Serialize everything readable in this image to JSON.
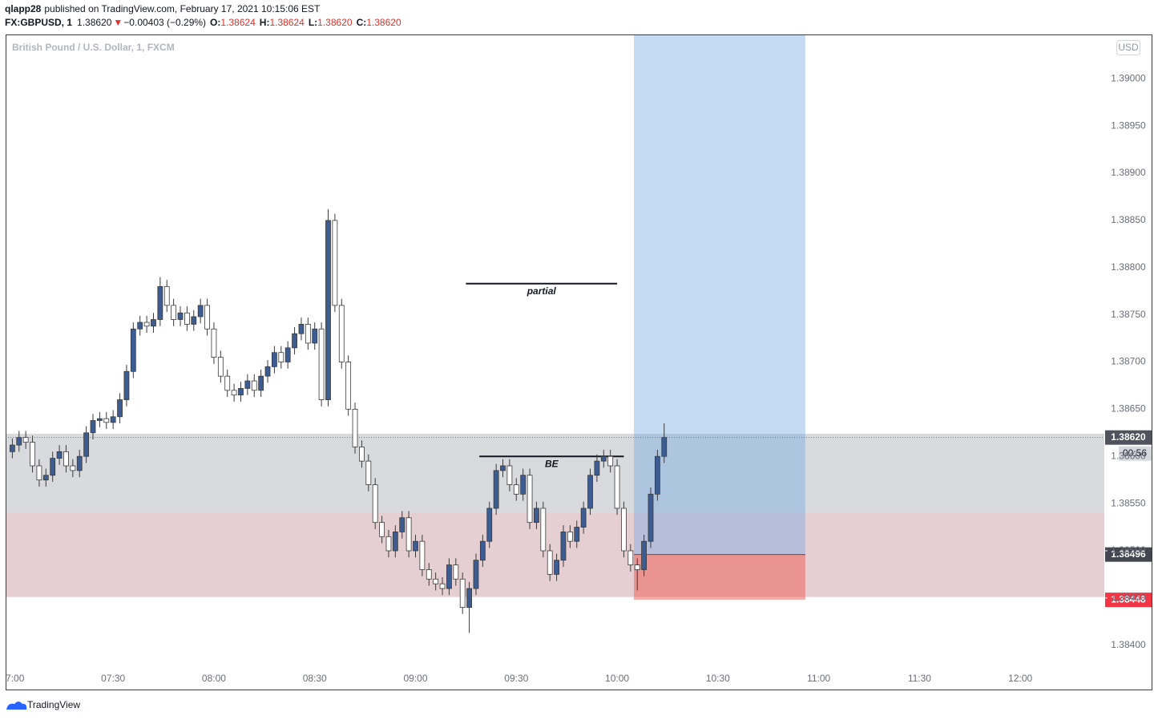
{
  "chart_data": {
    "type": "candlestick",
    "title": "British Pound / U.S. Dollar, 1, FXCM",
    "header": {
      "author": "qlapp28",
      "published": "published on TradingView.com, February 17, 2021 10:15:06 EST",
      "symbol": "FX:GBPUSD, 1",
      "last": "1.38620",
      "arrow": "▼",
      "change": "−0.00403 (−0.29%)",
      "ohlc": [
        [
          "O:",
          "1.38624"
        ],
        [
          "H:",
          "1.38624"
        ],
        [
          "L:",
          "1.38620"
        ],
        [
          "C:",
          "1.38620"
        ]
      ]
    },
    "currency": "USD",
    "footer": "TradingView",
    "x": [
      "07:00",
      "07:02",
      "07:04",
      "07:06",
      "07:08",
      "07:10",
      "07:12",
      "07:14",
      "07:16",
      "07:18",
      "07:20",
      "07:22",
      "07:24",
      "07:26",
      "07:28",
      "07:30",
      "07:32",
      "07:34",
      "07:36",
      "07:38",
      "07:40",
      "07:42",
      "07:44",
      "07:46",
      "07:48",
      "07:50",
      "07:52",
      "07:54",
      "07:56",
      "07:58",
      "08:00",
      "08:02",
      "08:04",
      "08:06",
      "08:08",
      "08:10",
      "08:12",
      "08:14",
      "08:16",
      "08:18",
      "08:20",
      "08:22",
      "08:24",
      "08:26",
      "08:28",
      "08:30",
      "08:32",
      "08:34",
      "08:36",
      "08:38",
      "08:40",
      "08:42",
      "08:44",
      "08:46",
      "08:48",
      "08:50",
      "08:52",
      "08:54",
      "08:56",
      "08:58",
      "09:00",
      "09:02",
      "09:04",
      "09:06",
      "09:08",
      "09:10",
      "09:12",
      "09:14",
      "09:16",
      "09:18",
      "09:20",
      "09:22",
      "09:24",
      "09:26",
      "09:28",
      "09:30",
      "09:32",
      "09:34",
      "09:36",
      "09:38",
      "09:40",
      "09:42",
      "09:44",
      "09:46",
      "09:48",
      "09:50",
      "09:52",
      "09:54",
      "09:56",
      "09:58",
      "10:00",
      "10:02",
      "10:04",
      "10:06",
      "10:08",
      "10:10",
      "10:12",
      "10:14"
    ],
    "open": [
      1.38605,
      1.38612,
      1.3862,
      1.38615,
      1.3859,
      1.38575,
      1.3858,
      1.38598,
      1.38605,
      1.3859,
      1.38585,
      1.386,
      1.38625,
      1.38638,
      1.3864,
      1.38636,
      1.38642,
      1.3866,
      1.3869,
      1.38735,
      1.38742,
      1.38738,
      1.38745,
      1.3878,
      1.3876,
      1.38745,
      1.38752,
      1.3874,
      1.38748,
      1.3876,
      1.38735,
      1.38705,
      1.38685,
      1.3867,
      1.38665,
      1.38672,
      1.3868,
      1.3867,
      1.38685,
      1.38695,
      1.3871,
      1.387,
      1.38715,
      1.3873,
      1.3874,
      1.3872,
      1.38735,
      1.3866,
      1.3885,
      1.3876,
      1.387,
      1.3865,
      1.3861,
      1.38595,
      1.3857,
      1.3853,
      1.38515,
      1.385,
      1.3852,
      1.38535,
      1.385,
      1.3851,
      1.3848,
      1.3847,
      1.38465,
      1.3846,
      1.38485,
      1.3847,
      1.3844,
      1.3846,
      1.3849,
      1.3851,
      1.38545,
      1.38585,
      1.3859,
      1.3857,
      1.3856,
      1.3858,
      1.3853,
      1.38545,
      1.385,
      1.38475,
      1.3849,
      1.3852,
      1.3851,
      1.38525,
      1.38545,
      1.3858,
      1.38595,
      1.386,
      1.3859,
      1.38545,
      1.385,
      1.38485,
      1.3848,
      1.3851,
      1.3856,
      1.386
    ],
    "high": [
      1.38619,
      1.38627,
      1.38627,
      1.38622,
      1.38597,
      1.38587,
      1.38605,
      1.38612,
      1.38612,
      1.38597,
      1.38607,
      1.38632,
      1.38645,
      1.38647,
      1.38647,
      1.38649,
      1.38667,
      1.38697,
      1.38742,
      1.38749,
      1.38749,
      1.38752,
      1.3879,
      1.38787,
      1.38767,
      1.38759,
      1.38759,
      1.38755,
      1.38767,
      1.38767,
      1.38742,
      1.38712,
      1.38692,
      1.38677,
      1.38679,
      1.38687,
      1.38687,
      1.38692,
      1.38702,
      1.38717,
      1.38717,
      1.38722,
      1.38737,
      1.38747,
      1.38747,
      1.38742,
      1.38742,
      1.38862,
      1.38857,
      1.38767,
      1.38707,
      1.38657,
      1.38617,
      1.38602,
      1.38577,
      1.38537,
      1.38522,
      1.38527,
      1.38542,
      1.38542,
      1.38517,
      1.38517,
      1.38487,
      1.38477,
      1.38472,
      1.38492,
      1.38492,
      1.38477,
      1.38467,
      1.38497,
      1.38517,
      1.38552,
      1.38592,
      1.38597,
      1.38597,
      1.38577,
      1.38587,
      1.38587,
      1.38552,
      1.38552,
      1.38507,
      1.38497,
      1.38527,
      1.38527,
      1.38532,
      1.38552,
      1.38587,
      1.38602,
      1.38607,
      1.38607,
      1.38597,
      1.38552,
      1.38507,
      1.38492,
      1.38517,
      1.38567,
      1.38607,
      1.38635
    ],
    "low": [
      1.38598,
      1.38605,
      1.38608,
      1.38583,
      1.38568,
      1.38568,
      1.38573,
      1.38591,
      1.38583,
      1.38578,
      1.38578,
      1.38593,
      1.38618,
      1.38631,
      1.38629,
      1.38629,
      1.38635,
      1.38653,
      1.38683,
      1.38728,
      1.38731,
      1.38731,
      1.38738,
      1.38753,
      1.38738,
      1.38738,
      1.38733,
      1.38733,
      1.38741,
      1.38728,
      1.38698,
      1.38678,
      1.38663,
      1.38658,
      1.38658,
      1.38665,
      1.38663,
      1.38663,
      1.38678,
      1.38688,
      1.38693,
      1.38693,
      1.38708,
      1.38723,
      1.38713,
      1.38713,
      1.38653,
      1.38653,
      1.38753,
      1.38693,
      1.38643,
      1.38603,
      1.38588,
      1.38563,
      1.38523,
      1.38508,
      1.38493,
      1.38493,
      1.38513,
      1.38493,
      1.38493,
      1.38473,
      1.38463,
      1.38458,
      1.38453,
      1.38453,
      1.38463,
      1.38433,
      1.38413,
      1.38453,
      1.38483,
      1.38503,
      1.38538,
      1.38578,
      1.38563,
      1.38553,
      1.38553,
      1.38523,
      1.38523,
      1.38493,
      1.38468,
      1.38468,
      1.38483,
      1.38503,
      1.38503,
      1.38518,
      1.38538,
      1.38573,
      1.38588,
      1.38583,
      1.38538,
      1.38493,
      1.38478,
      1.38458,
      1.38473,
      1.38503,
      1.38553,
      1.38593
    ],
    "close": [
      1.38612,
      1.3862,
      1.38615,
      1.3859,
      1.38575,
      1.3858,
      1.38598,
      1.38605,
      1.3859,
      1.38585,
      1.386,
      1.38625,
      1.38638,
      1.3864,
      1.38636,
      1.38642,
      1.3866,
      1.3869,
      1.38735,
      1.38742,
      1.38738,
      1.38745,
      1.3878,
      1.3876,
      1.38745,
      1.38752,
      1.3874,
      1.38748,
      1.3876,
      1.38735,
      1.38705,
      1.38685,
      1.3867,
      1.38665,
      1.38672,
      1.3868,
      1.3867,
      1.38685,
      1.38695,
      1.3871,
      1.387,
      1.38715,
      1.3873,
      1.3874,
      1.3872,
      1.38735,
      1.3866,
      1.3885,
      1.3876,
      1.387,
      1.3865,
      1.3861,
      1.38595,
      1.3857,
      1.3853,
      1.38515,
      1.385,
      1.3852,
      1.38535,
      1.385,
      1.3851,
      1.3848,
      1.3847,
      1.38465,
      1.3846,
      1.38485,
      1.3847,
      1.3844,
      1.3846,
      1.3849,
      1.3851,
      1.38545,
      1.38585,
      1.3859,
      1.3857,
      1.3856,
      1.3858,
      1.3853,
      1.38545,
      1.385,
      1.38475,
      1.3849,
      1.3852,
      1.3851,
      1.38525,
      1.38545,
      1.3858,
      1.38595,
      1.386,
      1.3859,
      1.38545,
      1.385,
      1.38485,
      1.3848,
      1.3851,
      1.3856,
      1.386,
      1.3862
    ],
    "up_color": "#3d5d92",
    "down_color": "#ffffff",
    "wick_color": "#3a3a3a",
    "xlim": [
      "06:58",
      "12:25"
    ],
    "xticks": [
      "07:00",
      "07:30",
      "08:00",
      "08:30",
      "09:00",
      "09:30",
      "10:00",
      "10:30",
      "11:00",
      "11:30",
      "12:00"
    ],
    "ylim": [
      1.38353,
      1.39047
    ],
    "yticks": [
      {
        "value": 1.384,
        "label": "1.38400"
      },
      {
        "value": 1.3845,
        "label": "1.38450"
      },
      {
        "value": 1.385,
        "label": "1.38500"
      },
      {
        "value": 1.3855,
        "label": "1.38550"
      },
      {
        "value": 1.386,
        "label": "1.38600"
      },
      {
        "value": 1.3865,
        "label": "1.38650"
      },
      {
        "value": 1.387,
        "label": "1.38700"
      },
      {
        "value": 1.3875,
        "label": "1.38750"
      },
      {
        "value": 1.388,
        "label": "1.38800"
      },
      {
        "value": 1.3885,
        "label": "1.38850"
      },
      {
        "value": 1.389,
        "label": "1.38900"
      },
      {
        "value": 1.3895,
        "label": "1.38950"
      },
      {
        "value": 1.39,
        "label": "1.39000"
      }
    ],
    "grid": false,
    "zones": [
      {
        "from": 1.3854,
        "to": 1.38624,
        "color": "rgba(170,172,182,0.45)"
      },
      {
        "from": 1.38451,
        "to": 1.3854,
        "color": "rgba(205,160,165,0.5)"
      }
    ],
    "annotations": [
      {
        "text": "partial",
        "value": 1.38783,
        "x": [
          "09:15",
          "10:00"
        ]
      },
      {
        "text": "BE",
        "value": 1.386,
        "x": [
          "09:19",
          "10:02"
        ]
      }
    ],
    "position": {
      "x": [
        "10:05",
        "10:56"
      ],
      "target": 1.39047,
      "entry": {
        "value": 1.38496,
        "label": "1.38496"
      },
      "stop": {
        "value": 1.38448,
        "label": "1.38448"
      },
      "target_color": "rgba(110,165,228,0.4)",
      "stop_color": "rgba(236,90,80,0.5)"
    },
    "last_price": {
      "value": 1.3862,
      "label": "1.38620"
    },
    "countdown": "00:56"
  }
}
